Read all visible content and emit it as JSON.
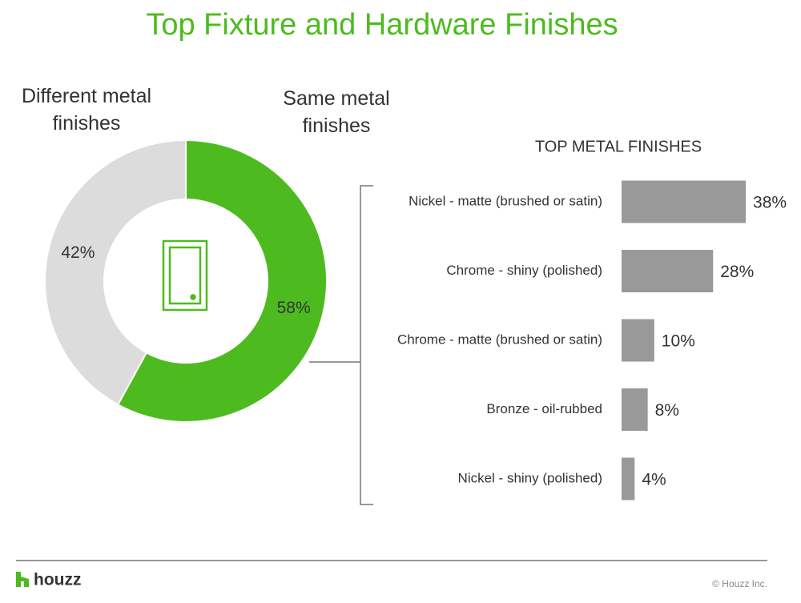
{
  "chart_data": [
    {
      "type": "donut",
      "title": "Top Fixture and Hardware Finishes",
      "categories": [
        "Same metal finishes",
        "Different metal finishes"
      ],
      "values": [
        58,
        42
      ],
      "value_labels": [
        "58%",
        "42%"
      ],
      "colors": [
        "#4dbb1f",
        "#dcdcdc"
      ]
    },
    {
      "type": "hbar",
      "title": "TOP METAL FINISHES",
      "categories": [
        "Nickel - matte (brushed or satin)",
        "Chrome - shiny (polished)",
        "Chrome - matte (brushed or satin)",
        "Bronze - oil-rubbed",
        "Nickel - shiny (polished)"
      ],
      "values": [
        38,
        28,
        10,
        8,
        4
      ],
      "value_labels": [
        "38%",
        "28%",
        "10%",
        "8%",
        "4%"
      ],
      "color": "#999999"
    }
  ],
  "footer": {
    "brand": "houzz",
    "copyright": "© Houzz Inc."
  }
}
